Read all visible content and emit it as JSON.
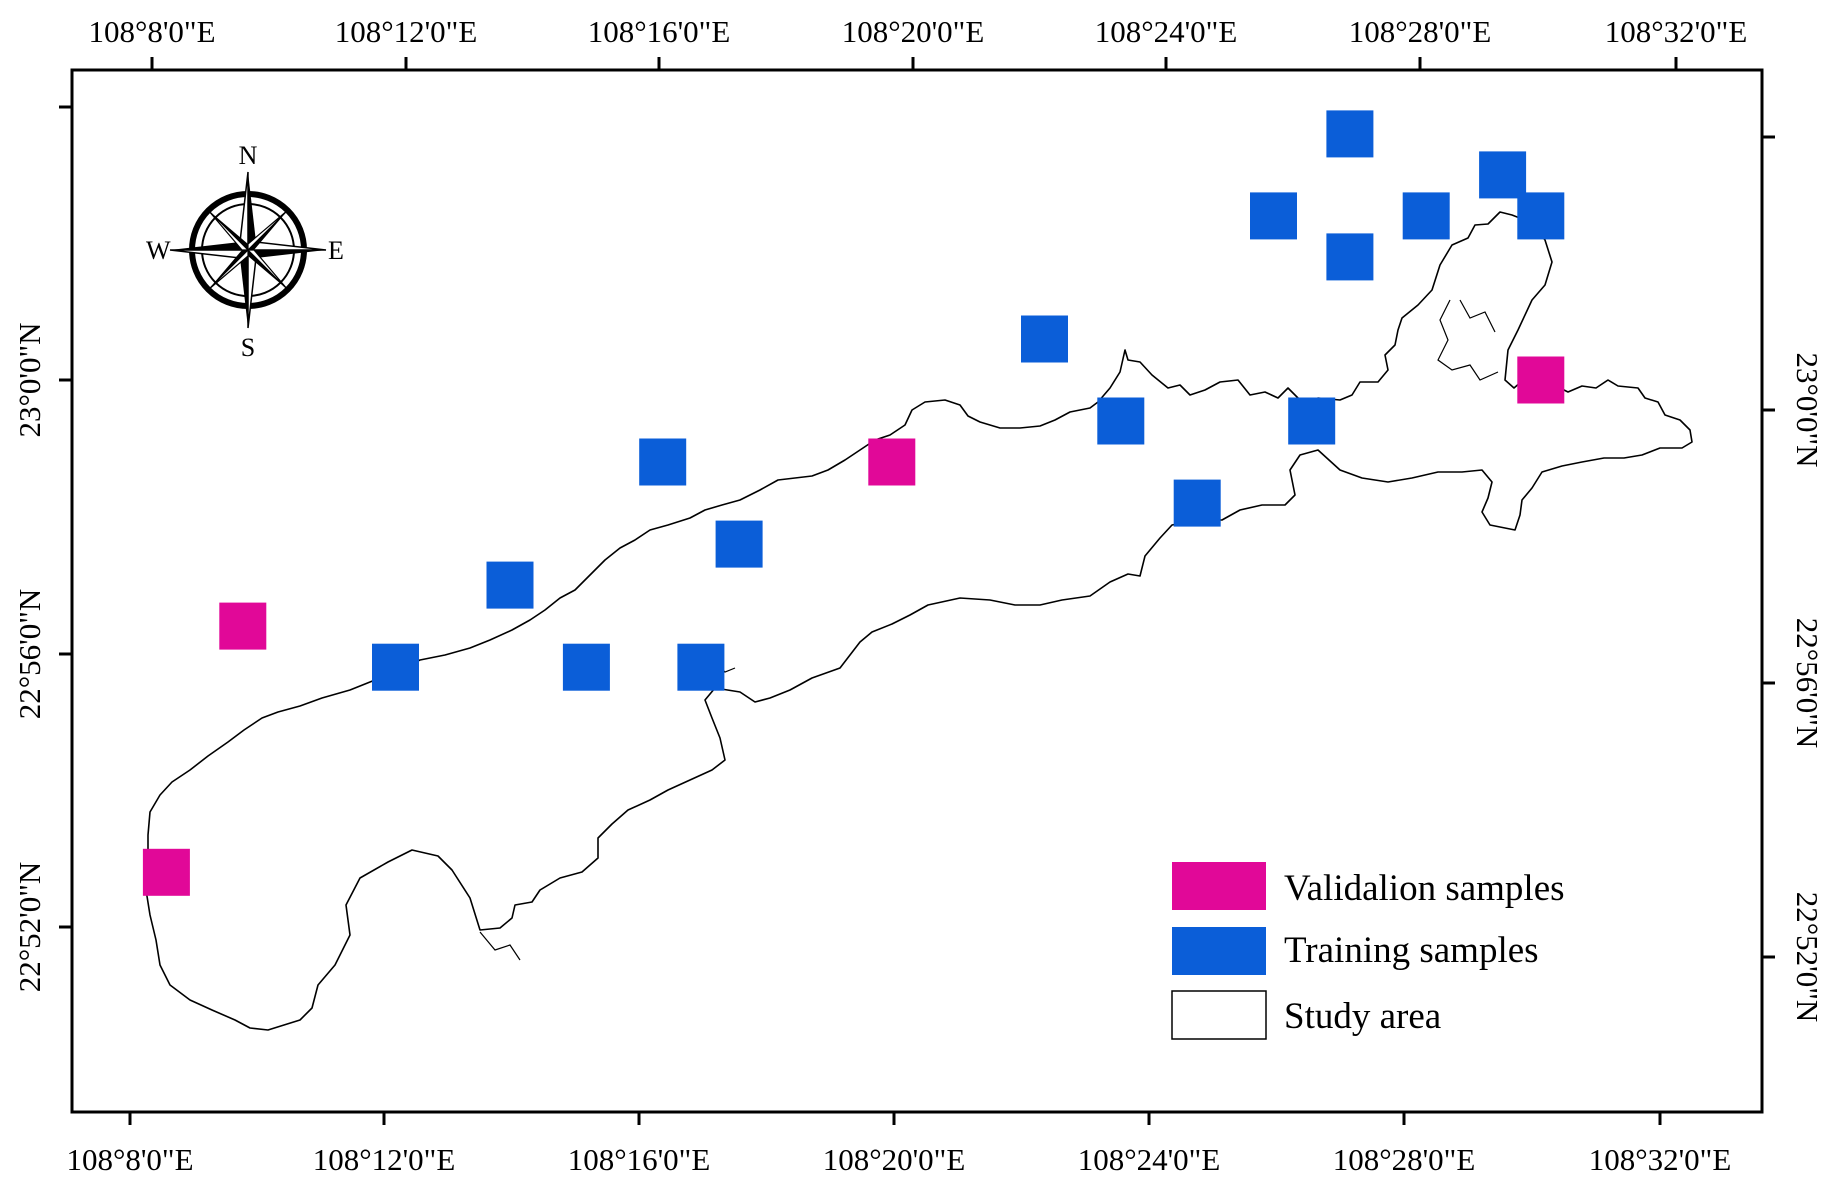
{
  "map": {
    "top_lon_labels": [
      "108°8'0\"E",
      "108°12'0\"E",
      "108°16'0\"E",
      "108°20'0\"E",
      "108°24'0\"E",
      "108°28'0\"E",
      "108°32'0\"E"
    ],
    "bottom_lon_labels": [
      "108°8'0\"E",
      "108°12'0\"E",
      "108°16'0\"E",
      "108°20'0\"E",
      "108°24'0\"E",
      "108°28'0\"E",
      "108°32'0\"E"
    ],
    "left_lat_labels": [
      "23°0'0\"N",
      "22°56'0\"N",
      "22°52'0\"N"
    ],
    "right_lat_labels": [
      "23°0'0\"N",
      "22°56'0\"N",
      "22°52'0\"N"
    ]
  },
  "compass": {
    "n": "N",
    "s": "S",
    "e": "E",
    "w": "W",
    "icon": "compass-rose-icon"
  },
  "legend": {
    "validation": {
      "label": "Validalion samples",
      "color": "#e10898"
    },
    "training": {
      "label": "Training samples",
      "color": "#0b5ed8"
    },
    "study_area": {
      "label": "Study area",
      "color": "#ffffff"
    }
  },
  "samples": {
    "validation": [
      {
        "lon_min": 108.16,
        "lat_min": 22.94
      },
      {
        "lon_min": 108.14,
        "lat_min": 22.88
      },
      {
        "lon_min": 108.33,
        "lat_min": 22.98
      },
      {
        "lon_min": 108.5,
        "lat_min": 23.0
      }
    ],
    "training": [
      {
        "lon_min": 108.45,
        "lat_min": 23.06
      },
      {
        "lon_min": 108.49,
        "lat_min": 23.05
      },
      {
        "lon_min": 108.5,
        "lat_min": 23.04
      },
      {
        "lon_min": 108.43,
        "lat_min": 23.04
      },
      {
        "lon_min": 108.47,
        "lat_min": 23.04
      },
      {
        "lon_min": 108.45,
        "lat_min": 23.03
      },
      {
        "lon_min": 108.37,
        "lat_min": 23.01
      },
      {
        "lon_min": 108.39,
        "lat_min": 22.99
      },
      {
        "lon_min": 108.44,
        "lat_min": 22.99
      },
      {
        "lon_min": 108.27,
        "lat_min": 22.98
      },
      {
        "lon_min": 108.41,
        "lat_min": 22.97
      },
      {
        "lon_min": 108.29,
        "lat_min": 22.96
      },
      {
        "lon_min": 108.23,
        "lat_min": 22.95
      },
      {
        "lon_min": 108.2,
        "lat_min": 22.93
      },
      {
        "lon_min": 108.25,
        "lat_min": 22.93
      },
      {
        "lon_min": 108.28,
        "lat_min": 22.93
      }
    ]
  }
}
